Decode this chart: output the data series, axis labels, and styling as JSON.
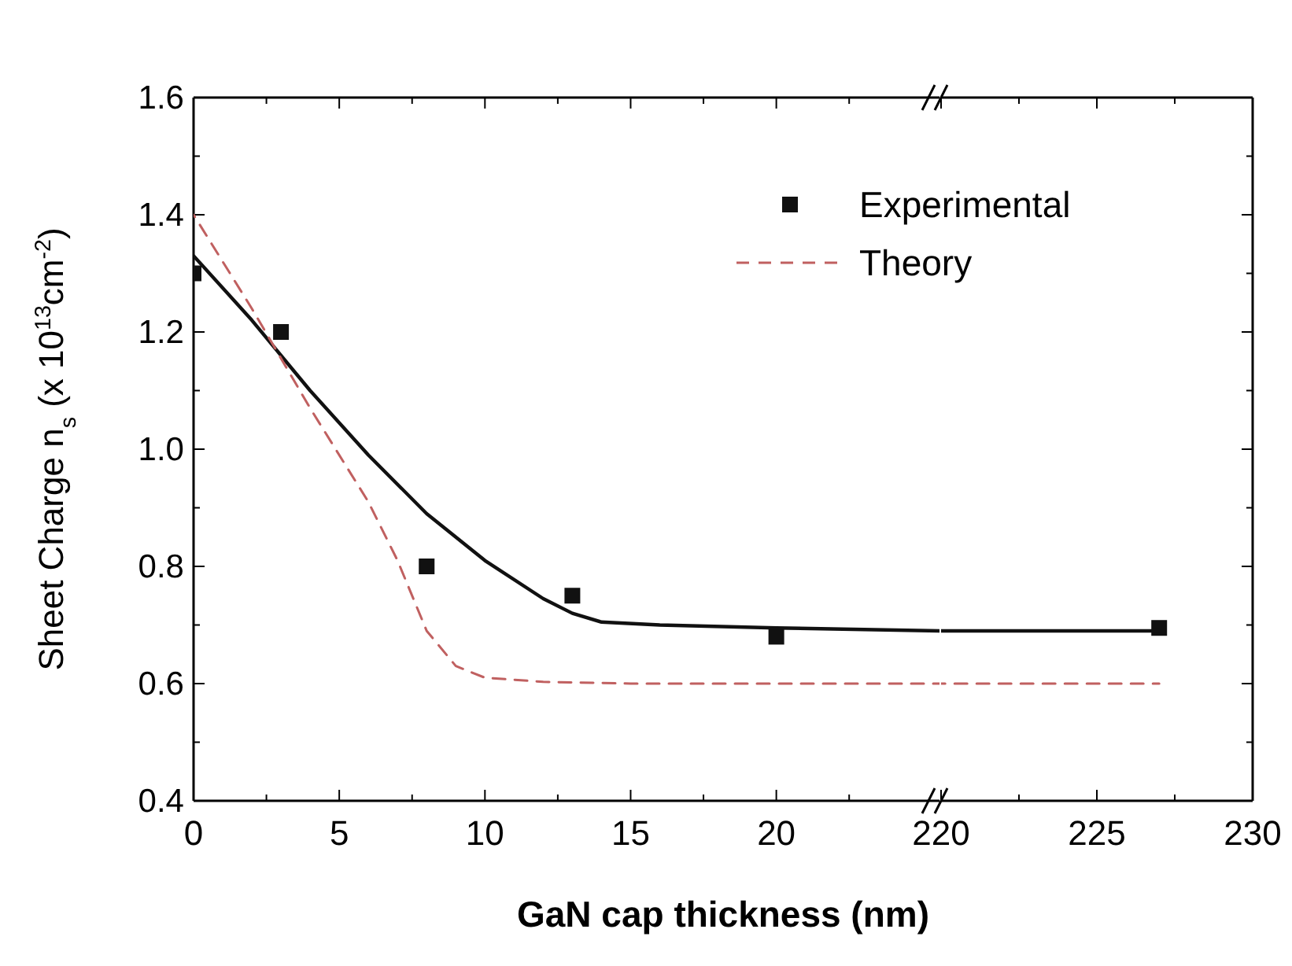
{
  "chart_data": [
    {
      "type": "scatter",
      "xlabel": "GaN cap thickness (nm)",
      "ylabel": "Sheet Charge $_{}$n$_{s}$ (x 10$^{13}$cm$^{-2}$)",
      "xlim": [
        0,
        25.6
      ],
      "ylim": [
        0.4,
        1.6
      ],
      "xticks": [
        {
          "value": 0,
          "label": "0"
        },
        {
          "value": 2.5,
          "label": null
        },
        5,
        {
          "value": 7.5,
          "label": null
        },
        10,
        {
          "value": 12.5,
          "label": null
        },
        15,
        {
          "value": 17.5,
          "label": null
        },
        20,
        {
          "value": 22.5,
          "label": null
        }
      ],
      "yticks": [
        0.4,
        {
          "value": 0.5,
          "label": null
        },
        0.6,
        {
          "value": 0.7,
          "label": null
        },
        0.8,
        {
          "value": 0.9,
          "label": null
        },
        {
          "value": 1.0,
          "label": "1.0"
        },
        {
          "value": 1.1,
          "label": null
        },
        1.2,
        {
          "value": 1.3,
          "label": null
        },
        1.4,
        {
          "value": 1.5,
          "label": null
        },
        1.6
      ],
      "legend": "top right",
      "grid": false,
      "series": [
        {
          "name": "Experimental",
          "type": "scatter",
          "marker": "square",
          "color": "#111111",
          "x": [
            0,
            3,
            8,
            13,
            20
          ],
          "values": [
            1.3,
            1.2,
            0.8,
            0.75,
            0.68
          ]
        },
        {
          "type": "line",
          "color": "#111111",
          "line_style": "solid",
          "x": [
            0,
            2,
            4,
            6,
            8,
            10,
            12,
            13,
            14,
            16,
            20,
            25.6
          ],
          "values": [
            1.33,
            1.22,
            1.1,
            0.99,
            0.89,
            0.81,
            0.745,
            0.72,
            0.705,
            0.7,
            0.695,
            0.69
          ]
        },
        {
          "name": "Theory",
          "type": "line",
          "color": "#c06060",
          "line_style": "dashed",
          "x": [
            0,
            2,
            4,
            6,
            7,
            8,
            9,
            10,
            12,
            15,
            25.6
          ],
          "values": [
            1.4,
            1.24,
            1.07,
            0.91,
            0.81,
            0.69,
            0.63,
            0.61,
            0.603,
            0.6,
            0.6
          ]
        }
      ]
    },
    {
      "type": "scatter",
      "xlim": [
        220,
        230
      ],
      "ylim": [
        0.4,
        1.6
      ],
      "tick_labels": "x",
      "xticks": [
        220,
        {
          "value": 222.5,
          "label": null
        },
        225,
        {
          "value": 227.5,
          "label": null
        },
        230
      ],
      "yticks": [
        0.4,
        0.5,
        0.6,
        0.7,
        0.8,
        0.9,
        1.0,
        1.1,
        1.2,
        1.3,
        1.4,
        1.5,
        1.6
      ],
      "grid": false,
      "series": [
        {
          "type": "scatter",
          "marker": "square",
          "color": "#111111",
          "x": [
            227
          ],
          "values": [
            0.695
          ]
        },
        {
          "type": "line",
          "color": "#111111",
          "line_style": "solid",
          "x": [
            220,
            227
          ],
          "values": [
            0.69,
            0.69
          ]
        },
        {
          "type": "line",
          "color": "#c06060",
          "line_style": "dashed",
          "x": [
            220,
            227
          ],
          "values": [
            0.6,
            0.6
          ]
        }
      ]
    }
  ]
}
